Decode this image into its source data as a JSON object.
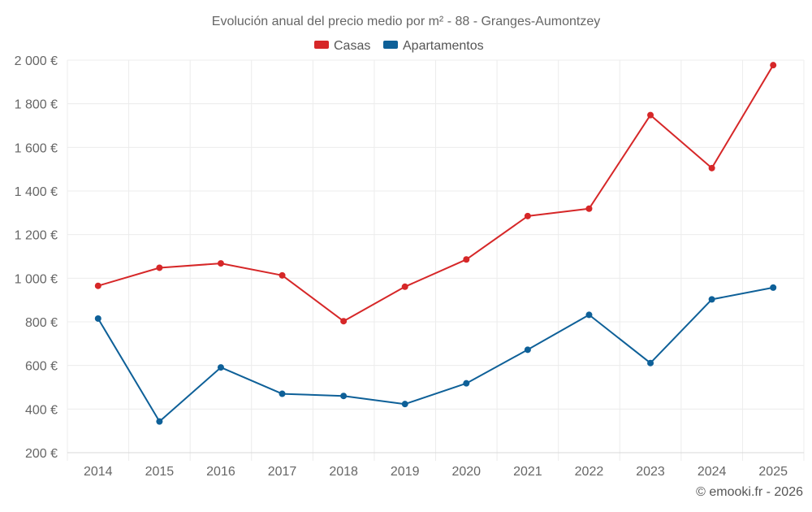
{
  "chart_data": {
    "type": "line",
    "title": "Evolución anual del precio medio por m² - 88 - Granges-Aumontzey",
    "categories": [
      "2014",
      "2015",
      "2016",
      "2017",
      "2018",
      "2019",
      "2020",
      "2021",
      "2022",
      "2023",
      "2024",
      "2025"
    ],
    "series": [
      {
        "name": "Casas",
        "color": "#d62728",
        "values": [
          965,
          1048,
          1068,
          1013,
          803,
          961,
          1086,
          1285,
          1319,
          1748,
          1505,
          1977
        ]
      },
      {
        "name": "Apartamentos",
        "color": "#0e6098",
        "values": [
          815,
          343,
          591,
          470,
          460,
          423,
          518,
          672,
          832,
          611,
          903,
          957
        ]
      }
    ],
    "ylim": [
      200,
      2000
    ],
    "yticks": [
      200,
      400,
      600,
      800,
      1000,
      1200,
      1400,
      1600,
      1800,
      2000
    ],
    "ytick_labels": [
      "200 €",
      "400 €",
      "600 €",
      "800 €",
      "1 000 €",
      "1 200 €",
      "1 400 €",
      "1 600 €",
      "1 800 €",
      "2 000 €"
    ],
    "xlabel": "",
    "ylabel": "",
    "grid": true,
    "legend_position": "top-center"
  },
  "credit": "© emooki.fr - 2026"
}
